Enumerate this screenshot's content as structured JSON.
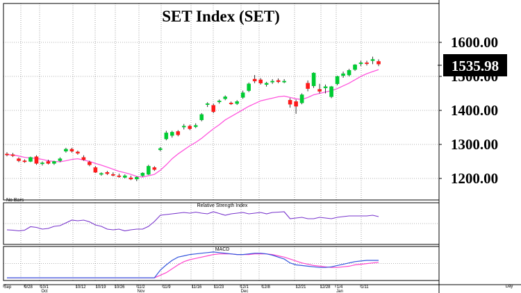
{
  "chart_data": {
    "type": "candlestick",
    "title": "SET Index (SET)",
    "last_value_label": "1535.98",
    "y_tick_labels": [
      "1600.00",
      "1500.00",
      "1400.00",
      "1300.00",
      "1200.00"
    ],
    "y_ticks": [
      1600,
      1500,
      1400,
      1300,
      1200
    ],
    "ylim": [
      1165,
      1640
    ],
    "grid": true,
    "corner_note": "No Bars",
    "period_label": "Day",
    "x_tick_labels": [
      "Sep",
      "9/28",
      "10/1",
      "10/12",
      "10/19",
      "10/26",
      "11/2",
      "11/9",
      "11/16",
      "11/23",
      "12/1",
      "12/8",
      "12/21",
      "12/28",
      "1/4",
      "1/11"
    ],
    "month_labels": [
      "Sep",
      "Oct",
      "Nov",
      "Dec",
      "Jan"
    ],
    "candles": [
      {
        "o": 1272,
        "h": 1277,
        "l": 1265,
        "c": 1270
      },
      {
        "o": 1270,
        "h": 1275,
        "l": 1263,
        "c": 1268
      },
      {
        "o": 1258,
        "h": 1262,
        "l": 1248,
        "c": 1252
      },
      {
        "o": 1252,
        "h": 1256,
        "l": 1246,
        "c": 1250
      },
      {
        "o": 1250,
        "h": 1264,
        "l": 1248,
        "c": 1262
      },
      {
        "o": 1264,
        "h": 1268,
        "l": 1240,
        "c": 1244
      },
      {
        "o": 1244,
        "h": 1250,
        "l": 1238,
        "c": 1246
      },
      {
        "o": 1250,
        "h": 1255,
        "l": 1241,
        "c": 1244
      },
      {
        "o": 1244,
        "h": 1252,
        "l": 1240,
        "c": 1250
      },
      {
        "o": 1252,
        "h": 1262,
        "l": 1248,
        "c": 1258
      },
      {
        "o": 1280,
        "h": 1290,
        "l": 1276,
        "c": 1286
      },
      {
        "o": 1286,
        "h": 1290,
        "l": 1276,
        "c": 1280
      },
      {
        "o": 1278,
        "h": 1282,
        "l": 1270,
        "c": 1274
      },
      {
        "o": 1262,
        "h": 1268,
        "l": 1252,
        "c": 1255
      },
      {
        "o": 1248,
        "h": 1252,
        "l": 1236,
        "c": 1240
      },
      {
        "o": 1232,
        "h": 1236,
        "l": 1216,
        "c": 1218
      },
      {
        "o": 1212,
        "h": 1218,
        "l": 1208,
        "c": 1215
      },
      {
        "o": 1218,
        "h": 1222,
        "l": 1210,
        "c": 1214
      },
      {
        "o": 1212,
        "h": 1218,
        "l": 1206,
        "c": 1210
      },
      {
        "o": 1208,
        "h": 1214,
        "l": 1202,
        "c": 1206
      },
      {
        "o": 1203,
        "h": 1212,
        "l": 1200,
        "c": 1208
      },
      {
        "o": 1202,
        "h": 1208,
        "l": 1195,
        "c": 1198
      },
      {
        "o": 1198,
        "h": 1206,
        "l": 1192,
        "c": 1204
      },
      {
        "o": 1208,
        "h": 1218,
        "l": 1205,
        "c": 1216
      },
      {
        "o": 1212,
        "h": 1240,
        "l": 1210,
        "c": 1236
      },
      {
        "o": 1232,
        "h": 1236,
        "l": 1222,
        "c": 1226
      },
      {
        "o": 1284,
        "h": 1292,
        "l": 1280,
        "c": 1288
      },
      {
        "o": 1316,
        "h": 1340,
        "l": 1312,
        "c": 1334
      },
      {
        "o": 1326,
        "h": 1340,
        "l": 1320,
        "c": 1336
      },
      {
        "o": 1338,
        "h": 1342,
        "l": 1324,
        "c": 1328
      },
      {
        "o": 1352,
        "h": 1360,
        "l": 1344,
        "c": 1354
      },
      {
        "o": 1354,
        "h": 1358,
        "l": 1342,
        "c": 1346
      },
      {
        "o": 1352,
        "h": 1362,
        "l": 1348,
        "c": 1356
      },
      {
        "o": 1372,
        "h": 1392,
        "l": 1368,
        "c": 1388
      },
      {
        "o": 1418,
        "h": 1424,
        "l": 1410,
        "c": 1420
      },
      {
        "o": 1415,
        "h": 1420,
        "l": 1392,
        "c": 1396
      },
      {
        "o": 1425,
        "h": 1432,
        "l": 1420,
        "c": 1428
      },
      {
        "o": 1434,
        "h": 1444,
        "l": 1430,
        "c": 1440
      },
      {
        "o": 1422,
        "h": 1426,
        "l": 1416,
        "c": 1420
      },
      {
        "o": 1420,
        "h": 1430,
        "l": 1416,
        "c": 1426
      },
      {
        "o": 1438,
        "h": 1458,
        "l": 1434,
        "c": 1452
      },
      {
        "o": 1458,
        "h": 1482,
        "l": 1454,
        "c": 1478
      },
      {
        "o": 1492,
        "h": 1504,
        "l": 1480,
        "c": 1486
      },
      {
        "o": 1490,
        "h": 1495,
        "l": 1476,
        "c": 1480
      },
      {
        "o": 1476,
        "h": 1484,
        "l": 1470,
        "c": 1480
      },
      {
        "o": 1484,
        "h": 1492,
        "l": 1478,
        "c": 1486
      },
      {
        "o": 1488,
        "h": 1494,
        "l": 1480,
        "c": 1484
      },
      {
        "o": 1486,
        "h": 1492,
        "l": 1480,
        "c": 1486
      },
      {
        "o": 1430,
        "h": 1436,
        "l": 1408,
        "c": 1418
      },
      {
        "o": 1426,
        "h": 1432,
        "l": 1390,
        "c": 1412
      },
      {
        "o": 1422,
        "h": 1450,
        "l": 1418,
        "c": 1446
      },
      {
        "o": 1480,
        "h": 1488,
        "l": 1456,
        "c": 1464
      },
      {
        "o": 1472,
        "h": 1512,
        "l": 1466,
        "c": 1510
      },
      {
        "o": 1462,
        "h": 1478,
        "l": 1450,
        "c": 1456
      },
      {
        "o": 1466,
        "h": 1476,
        "l": 1450,
        "c": 1470
      },
      {
        "o": 1440,
        "h": 1472,
        "l": 1436,
        "c": 1470
      },
      {
        "o": 1478,
        "h": 1502,
        "l": 1474,
        "c": 1500
      },
      {
        "o": 1502,
        "h": 1514,
        "l": 1496,
        "c": 1508
      },
      {
        "o": 1504,
        "h": 1522,
        "l": 1500,
        "c": 1518
      },
      {
        "o": 1520,
        "h": 1536,
        "l": 1516,
        "c": 1534
      },
      {
        "o": 1538,
        "h": 1546,
        "l": 1530,
        "c": 1540
      },
      {
        "o": 1540,
        "h": 1546,
        "l": 1532,
        "c": 1538
      },
      {
        "o": 1546,
        "h": 1558,
        "l": 1536,
        "c": 1550
      },
      {
        "o": 1544,
        "h": 1550,
        "l": 1530,
        "c": 1536
      }
    ],
    "moving_average": [
      1270,
      1269,
      1266,
      1262,
      1260,
      1259,
      1256,
      1252,
      1250,
      1249,
      1252,
      1256,
      1258,
      1254,
      1250,
      1244,
      1239,
      1233,
      1227,
      1221,
      1217,
      1212,
      1206,
      1204,
      1208,
      1212,
      1224,
      1240,
      1258,
      1272,
      1284,
      1296,
      1306,
      1318,
      1332,
      1346,
      1358,
      1372,
      1382,
      1392,
      1402,
      1412,
      1420,
      1428,
      1432,
      1436,
      1440,
      1442,
      1438,
      1434,
      1432,
      1438,
      1446,
      1450,
      1454,
      1458,
      1464,
      1472,
      1480,
      1490,
      1500,
      1508,
      1514,
      1520
    ],
    "rsi": {
      "title": "Relative Strength Index",
      "ylim": [
        0,
        100
      ],
      "values": [
        38,
        37,
        35,
        37,
        47,
        45,
        40,
        42,
        48,
        50,
        58,
        66,
        64,
        66,
        61,
        52,
        48,
        40,
        38,
        40,
        35,
        38,
        40,
        40,
        48,
        62,
        80,
        82,
        84,
        86,
        88,
        86,
        89,
        86,
        84,
        90,
        85,
        80,
        84,
        86,
        88,
        84,
        86,
        88,
        84,
        88,
        89,
        90,
        70,
        72,
        74,
        70,
        70,
        74,
        72,
        70,
        74,
        76,
        78,
        78,
        78,
        78,
        80,
        76
      ]
    },
    "macd": {
      "title": "MACD",
      "ylim": [
        -32,
        12
      ],
      "macd_line": [
        -30,
        -30,
        -30,
        -30,
        -30,
        -30,
        -30,
        -30,
        -30,
        -30,
        -30,
        -30,
        -30,
        -30,
        -30,
        -30,
        -30,
        -30,
        -30,
        -30,
        -30,
        -30,
        -30,
        -30,
        -30,
        -30,
        -18,
        -10,
        -3,
        2,
        4,
        6,
        7,
        8,
        9,
        10,
        9,
        8,
        7,
        6,
        6,
        7,
        8,
        8,
        7,
        5,
        2,
        -1,
        -7,
        -10,
        -11,
        -12,
        -13,
        -14,
        -14,
        -13,
        -11,
        -9,
        -7,
        -5,
        -4,
        -3,
        -3,
        -3
      ],
      "signal_line": [
        -30,
        -30,
        -30,
        -30,
        -30,
        -30,
        -30,
        -30,
        -30,
        -30,
        -30,
        -30,
        -30,
        -30,
        -30,
        -30,
        -30,
        -30,
        -30,
        -30,
        -30,
        -30,
        -30,
        -30,
        -30,
        -30,
        -26,
        -22,
        -16,
        -10,
        -5,
        -2,
        0,
        2,
        4,
        6,
        7,
        7,
        7,
        6,
        6,
        6,
        7,
        7,
        7,
        6,
        4,
        2,
        -1,
        -4,
        -7,
        -9,
        -11,
        -12,
        -13,
        -14,
        -14,
        -13,
        -12,
        -10,
        -9,
        -8,
        -7,
        -6
      ]
    },
    "colors": {
      "up": "#00cc33",
      "down": "#ff1a1a",
      "ma": "#ff55dd",
      "rsi": "#7733cc",
      "macd": "#3355dd",
      "signal": "#ff44cc",
      "grid": "#666666",
      "last_box": "#000000"
    }
  }
}
